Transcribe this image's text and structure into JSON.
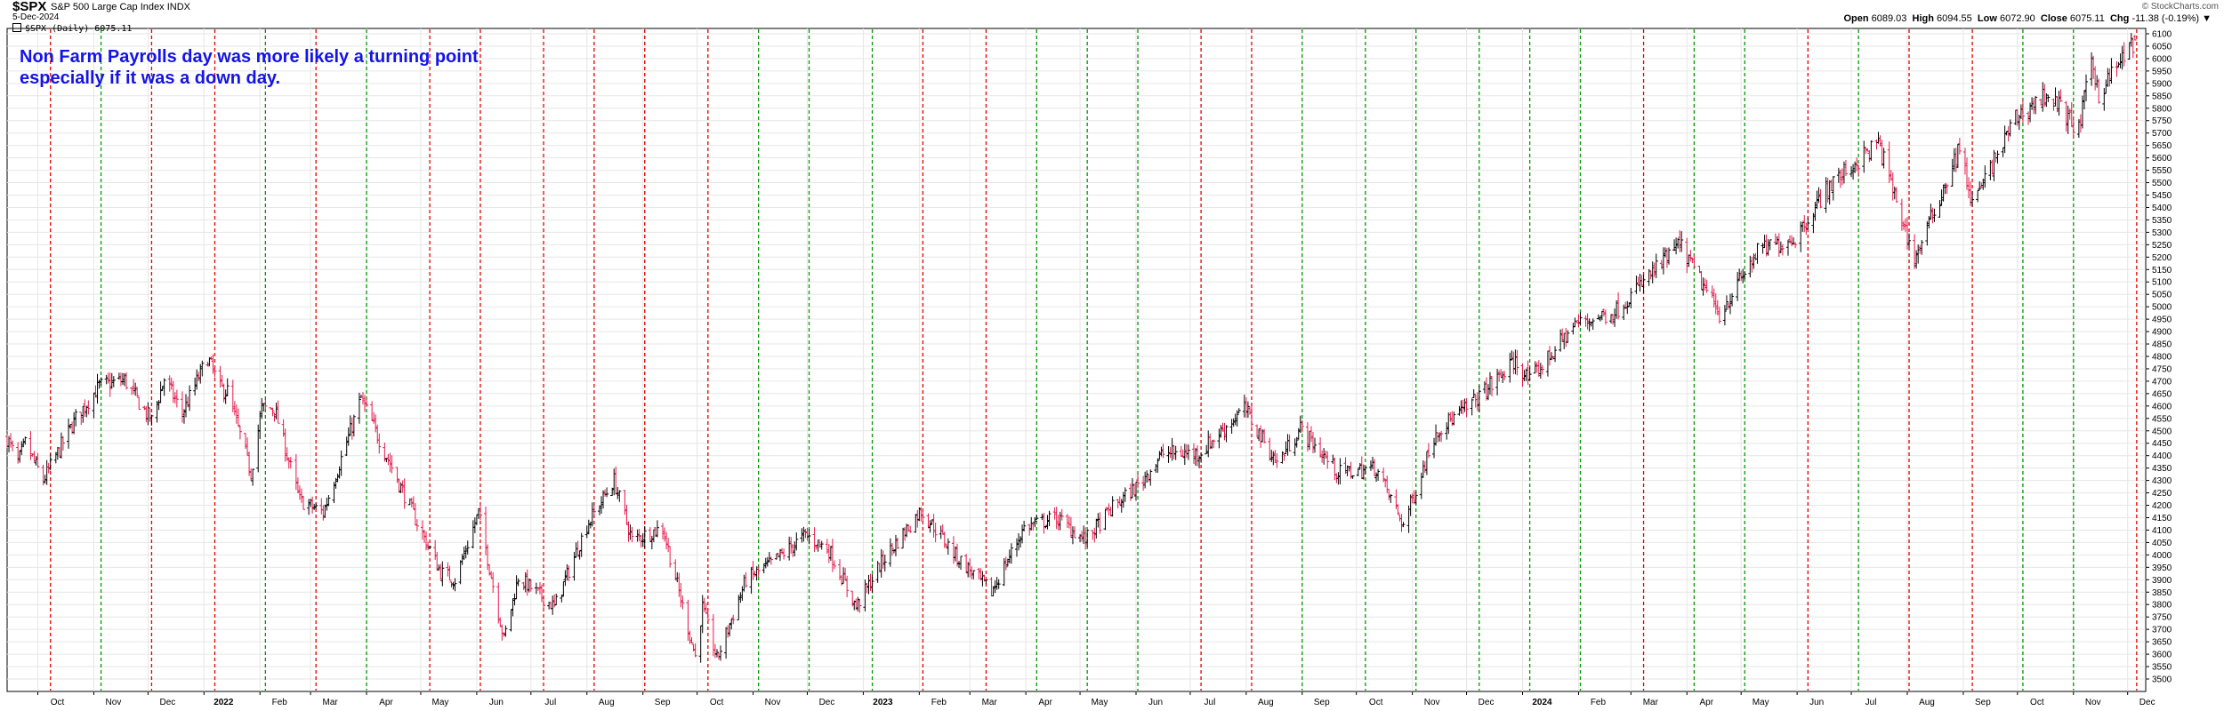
{
  "header": {
    "symbol": "$SPX",
    "name": "S&P 500 Large Cap Index",
    "exchange": "INDX",
    "date": "5-Dec-2024",
    "legend": "$SPX (Daily) 6075.11",
    "brand": "© StockCharts.com"
  },
  "ohlc": {
    "open_label": "Open",
    "open": "6089.03",
    "high_label": "High",
    "high": "6094.55",
    "low_label": "Low",
    "low": "6072.90",
    "close_label": "Close",
    "close": "6075.11",
    "chg_label": "Chg",
    "chg": "-11.38 (-0.19%)",
    "chg_arrow": "▼"
  },
  "annotation": {
    "line1": "Non Farm Payrolls day was more likely a turning point",
    "line2": "especially if it was a down day."
  },
  "colors": {
    "up_bar": "#000000",
    "down_bar": "#e6194b",
    "red_marker": "#e60000",
    "green_marker": "#009900",
    "annotation": "#1414e6",
    "grid": "#e6e6e6"
  },
  "chart_data": {
    "type": "bar",
    "subtype": "ohlc",
    "title": "$SPX S&P 500 Large Cap Index INDX",
    "series_label": "$SPX (Daily) 6075.11",
    "ylim": [
      3500,
      6100
    ],
    "y_ticks": [
      3500,
      3550,
      3600,
      3650,
      3700,
      3750,
      3800,
      3850,
      3900,
      3950,
      4000,
      4050,
      4100,
      4150,
      4200,
      4250,
      4300,
      4350,
      4400,
      4450,
      4500,
      4550,
      4600,
      4650,
      4700,
      4750,
      4800,
      4850,
      4900,
      4950,
      5000,
      5050,
      5100,
      5150,
      5200,
      5250,
      5300,
      5350,
      5400,
      5450,
      5500,
      5550,
      5600,
      5650,
      5700,
      5750,
      5800,
      5850,
      5900,
      5950,
      6000,
      6050,
      6100
    ],
    "y_axis_side": "right",
    "grid": true,
    "x_range": [
      "2021-09-14",
      "2024-12-11"
    ],
    "x_labels": [
      {
        "label": "Oct",
        "date": "2021-10-01",
        "bold": false
      },
      {
        "label": "Nov",
        "date": "2021-11-01",
        "bold": false
      },
      {
        "label": "Dec",
        "date": "2021-12-01",
        "bold": false
      },
      {
        "label": "2022",
        "date": "2022-01-01",
        "bold": true
      },
      {
        "label": "Feb",
        "date": "2022-02-01",
        "bold": false
      },
      {
        "label": "Mar",
        "date": "2022-03-01",
        "bold": false
      },
      {
        "label": "Apr",
        "date": "2022-04-01",
        "bold": false
      },
      {
        "label": "May",
        "date": "2022-05-01",
        "bold": false
      },
      {
        "label": "Jun",
        "date": "2022-06-01",
        "bold": false
      },
      {
        "label": "Jul",
        "date": "2022-07-01",
        "bold": false
      },
      {
        "label": "Aug",
        "date": "2022-08-01",
        "bold": false
      },
      {
        "label": "Sep",
        "date": "2022-09-01",
        "bold": false
      },
      {
        "label": "Oct",
        "date": "2022-10-01",
        "bold": false
      },
      {
        "label": "Nov",
        "date": "2022-11-01",
        "bold": false
      },
      {
        "label": "Dec",
        "date": "2022-12-01",
        "bold": false
      },
      {
        "label": "2023",
        "date": "2023-01-01",
        "bold": true
      },
      {
        "label": "Feb",
        "date": "2023-02-01",
        "bold": false
      },
      {
        "label": "Mar",
        "date": "2023-03-01",
        "bold": false
      },
      {
        "label": "Apr",
        "date": "2023-04-01",
        "bold": false
      },
      {
        "label": "May",
        "date": "2023-05-01",
        "bold": false
      },
      {
        "label": "Jun",
        "date": "2023-06-01",
        "bold": false
      },
      {
        "label": "Jul",
        "date": "2023-07-01",
        "bold": false
      },
      {
        "label": "Aug",
        "date": "2023-08-01",
        "bold": false
      },
      {
        "label": "Sep",
        "date": "2023-09-01",
        "bold": false
      },
      {
        "label": "Oct",
        "date": "2023-10-01",
        "bold": false
      },
      {
        "label": "Nov",
        "date": "2023-11-01",
        "bold": false
      },
      {
        "label": "Dec",
        "date": "2023-12-01",
        "bold": false
      },
      {
        "label": "2024",
        "date": "2024-01-01",
        "bold": true
      },
      {
        "label": "Feb",
        "date": "2024-02-01",
        "bold": false
      },
      {
        "label": "Mar",
        "date": "2024-03-01",
        "bold": false
      },
      {
        "label": "Apr",
        "date": "2024-04-01",
        "bold": false
      },
      {
        "label": "May",
        "date": "2024-05-01",
        "bold": false
      },
      {
        "label": "Jun",
        "date": "2024-06-01",
        "bold": false
      },
      {
        "label": "Jul",
        "date": "2024-07-01",
        "bold": false
      },
      {
        "label": "Aug",
        "date": "2024-08-01",
        "bold": false
      },
      {
        "label": "Sep",
        "date": "2024-09-01",
        "bold": false
      },
      {
        "label": "Oct",
        "date": "2024-10-01",
        "bold": false
      },
      {
        "label": "Nov",
        "date": "2024-11-01",
        "bold": false
      },
      {
        "label": "Dec",
        "date": "2024-12-01",
        "bold": false
      }
    ],
    "markers": [
      {
        "date": "2021-10-08",
        "color": "red"
      },
      {
        "date": "2021-11-05",
        "color": "green"
      },
      {
        "date": "2021-12-03",
        "color": "red"
      },
      {
        "date": "2022-01-07",
        "color": "red"
      },
      {
        "date": "2022-02-04",
        "color": "green"
      },
      {
        "date": "2022-03-04",
        "color": "red"
      },
      {
        "date": "2022-04-01",
        "color": "green"
      },
      {
        "date": "2022-05-06",
        "color": "red"
      },
      {
        "date": "2022-06-03",
        "color": "red"
      },
      {
        "date": "2022-07-08",
        "color": "red"
      },
      {
        "date": "2022-08-05",
        "color": "red"
      },
      {
        "date": "2022-09-02",
        "color": "red"
      },
      {
        "date": "2022-10-07",
        "color": "red"
      },
      {
        "date": "2022-11-04",
        "color": "green"
      },
      {
        "date": "2022-12-02",
        "color": "green"
      },
      {
        "date": "2023-01-06",
        "color": "green"
      },
      {
        "date": "2023-02-03",
        "color": "red"
      },
      {
        "date": "2023-03-10",
        "color": "red"
      },
      {
        "date": "2023-04-07",
        "color": "green"
      },
      {
        "date": "2023-05-05",
        "color": "green"
      },
      {
        "date": "2023-06-02",
        "color": "green"
      },
      {
        "date": "2023-07-07",
        "color": "red"
      },
      {
        "date": "2023-08-04",
        "color": "red"
      },
      {
        "date": "2023-09-01",
        "color": "green"
      },
      {
        "date": "2023-10-06",
        "color": "green"
      },
      {
        "date": "2023-11-03",
        "color": "green"
      },
      {
        "date": "2023-12-08",
        "color": "green"
      },
      {
        "date": "2024-01-05",
        "color": "green"
      },
      {
        "date": "2024-02-02",
        "color": "green"
      },
      {
        "date": "2024-03-08",
        "color": "red"
      },
      {
        "date": "2024-04-05",
        "color": "green"
      },
      {
        "date": "2024-05-03",
        "color": "green"
      },
      {
        "date": "2024-06-07",
        "color": "red"
      },
      {
        "date": "2024-07-05",
        "color": "green"
      },
      {
        "date": "2024-08-02",
        "color": "red"
      },
      {
        "date": "2024-09-06",
        "color": "red"
      },
      {
        "date": "2024-10-04",
        "color": "green"
      },
      {
        "date": "2024-11-01",
        "color": "green"
      },
      {
        "date": "2024-12-06",
        "color": "red"
      }
    ],
    "price_path": [
      [
        "2021-09-14",
        4470
      ],
      [
        "2021-09-20",
        4370
      ],
      [
        "2021-09-24",
        4450
      ],
      [
        "2021-10-04",
        4300
      ],
      [
        "2021-10-14",
        4440
      ],
      [
        "2021-10-22",
        4550
      ],
      [
        "2021-11-04",
        4680
      ],
      [
        "2021-11-18",
        4705
      ],
      [
        "2021-11-30",
        4570
      ],
      [
        "2021-12-03",
        4540
      ],
      [
        "2021-12-10",
        4710
      ],
      [
        "2021-12-20",
        4570
      ],
      [
        "2022-01-03",
        4795
      ],
      [
        "2022-01-10",
        4670
      ],
      [
        "2022-01-14",
        4660
      ],
      [
        "2022-01-27",
        4330
      ],
      [
        "2022-02-02",
        4590
      ],
      [
        "2022-02-09",
        4590
      ],
      [
        "2022-02-23",
        4220
      ],
      [
        "2022-03-08",
        4170
      ],
      [
        "2022-03-29",
        4630
      ],
      [
        "2022-04-12",
        4400
      ],
      [
        "2022-04-29",
        4130
      ],
      [
        "2022-05-12",
        3930
      ],
      [
        "2022-05-20",
        3900
      ],
      [
        "2022-06-02",
        4170
      ],
      [
        "2022-06-16",
        3660
      ],
      [
        "2022-06-24",
        3910
      ],
      [
        "2022-07-14",
        3790
      ],
      [
        "2022-08-01",
        4120
      ],
      [
        "2022-08-16",
        4300
      ],
      [
        "2022-08-26",
        4060
      ],
      [
        "2022-09-12",
        4110
      ],
      [
        "2022-09-30",
        3590
      ],
      [
        "2022-10-04",
        3790
      ],
      [
        "2022-10-12",
        3580
      ],
      [
        "2022-10-28",
        3900
      ],
      [
        "2022-11-10",
        3960
      ],
      [
        "2022-11-30",
        4080
      ],
      [
        "2022-12-13",
        4020
      ],
      [
        "2022-12-28",
        3790
      ],
      [
        "2023-01-12",
        3980
      ],
      [
        "2023-02-02",
        4180
      ],
      [
        "2023-02-22",
        3990
      ],
      [
        "2023-03-13",
        3850
      ],
      [
        "2023-03-31",
        4110
      ],
      [
        "2023-04-18",
        4150
      ],
      [
        "2023-05-04",
        4060
      ],
      [
        "2023-05-19",
        4190
      ],
      [
        "2023-06-02",
        4280
      ],
      [
        "2023-06-16",
        4410
      ],
      [
        "2023-07-06",
        4410
      ],
      [
        "2023-07-31",
        4590
      ],
      [
        "2023-08-18",
        4370
      ],
      [
        "2023-08-31",
        4510
      ],
      [
        "2023-09-21",
        4330
      ],
      [
        "2023-10-12",
        4350
      ],
      [
        "2023-10-27",
        4120
      ],
      [
        "2023-11-14",
        4500
      ],
      [
        "2023-12-01",
        4590
      ],
      [
        "2023-12-28",
        4780
      ],
      [
        "2024-01-05",
        4700
      ],
      [
        "2024-01-30",
        4930
      ],
      [
        "2024-02-21",
        4980
      ],
      [
        "2024-03-28",
        5250
      ],
      [
        "2024-04-19",
        4970
      ],
      [
        "2024-05-10",
        5220
      ],
      [
        "2024-05-31",
        5280
      ],
      [
        "2024-06-18",
        5480
      ],
      [
        "2024-07-16",
        5660
      ],
      [
        "2024-08-05",
        5190
      ],
      [
        "2024-08-30",
        5640
      ],
      [
        "2024-09-06",
        5410
      ],
      [
        "2024-09-30",
        5760
      ],
      [
        "2024-10-18",
        5860
      ],
      [
        "2024-11-04",
        5710
      ],
      [
        "2024-11-11",
        6000
      ],
      [
        "2024-11-15",
        5860
      ],
      [
        "2024-12-05",
        6075
      ],
      [
        "2024-12-06",
        6090
      ]
    ],
    "last_bar": {
      "date": "2024-12-05",
      "open": 6089.03,
      "high": 6094.55,
      "low": 6072.9,
      "close": 6075.11
    }
  }
}
